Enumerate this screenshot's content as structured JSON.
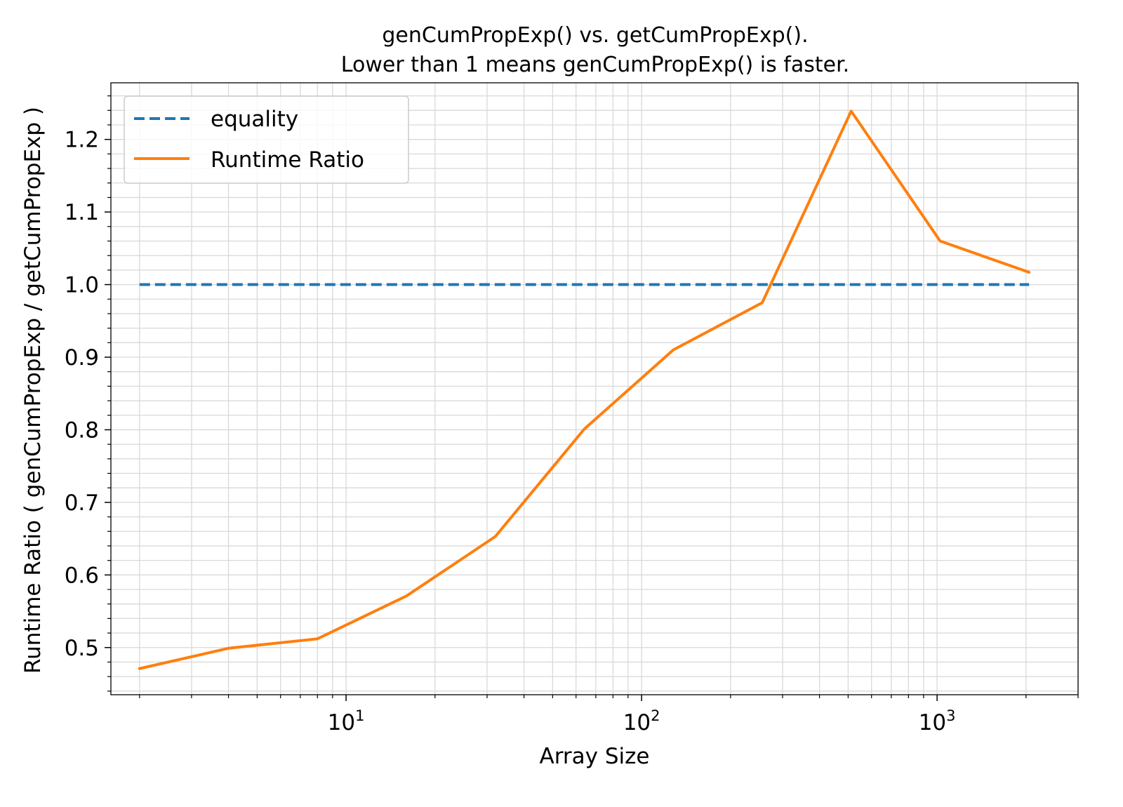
{
  "chart_data": {
    "type": "line",
    "title": [
      "genCumPropExp() vs. getCumPropExp().",
      "Lower than 1 means genCumPropExp() is faster."
    ],
    "xlabel": "Array Size",
    "ylabel": "Runtime Ratio ( genCumPropExp / getCumPropExp )",
    "xscale": "log",
    "xlim": [
      1.6,
      3000
    ],
    "ylim": [
      0.435,
      1.278
    ],
    "x_ticks": [
      {
        "value": 10,
        "base": "10",
        "exp": "1"
      },
      {
        "value": 100,
        "base": "10",
        "exp": "2"
      },
      {
        "value": 1000,
        "base": "10",
        "exp": "3"
      }
    ],
    "y_ticks": [
      "0.5",
      "0.6",
      "0.7",
      "0.8",
      "0.9",
      "1.0",
      "1.1",
      "1.2"
    ],
    "grid": true,
    "legend_position": "top-left",
    "series": [
      {
        "name": "equality",
        "style": "dashed",
        "color": "#1f77b4",
        "x": [
          2,
          4,
          8,
          16,
          32,
          64,
          128,
          256,
          512,
          1024,
          2048
        ],
        "y": [
          1.0,
          1.0,
          1.0,
          1.0,
          1.0,
          1.0,
          1.0,
          1.0,
          1.0,
          1.0,
          1.0
        ]
      },
      {
        "name": "Runtime Ratio",
        "style": "solid",
        "color": "#ff7f0e",
        "x": [
          2,
          4,
          8,
          16,
          32,
          64,
          128,
          256,
          512,
          1024,
          2048
        ],
        "y": [
          0.471,
          0.499,
          0.512,
          0.571,
          0.653,
          0.801,
          0.91,
          0.975,
          1.239,
          1.06,
          1.017
        ]
      }
    ]
  }
}
